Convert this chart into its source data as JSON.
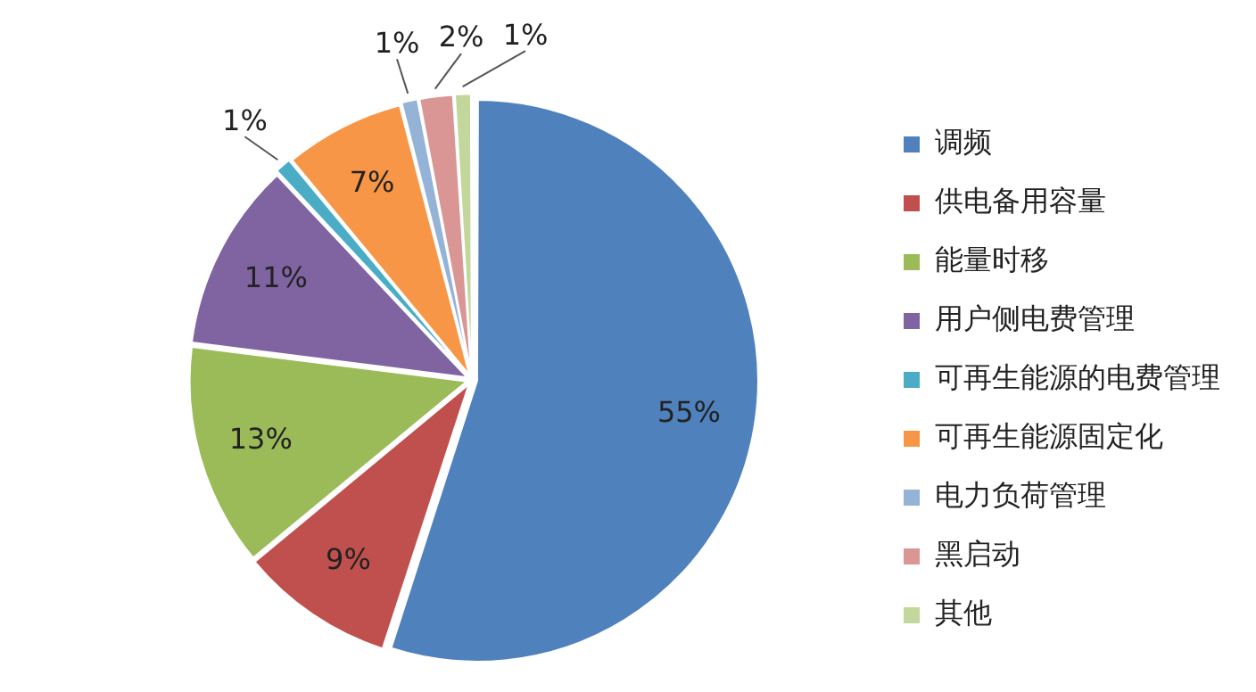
{
  "chart_data": {
    "type": "pie",
    "categories": [
      "调频",
      "供电备用容量",
      "能量时移",
      "用户侧电费管理",
      "可再生能源的电费管理",
      "可再生能源固定化",
      "电力负荷管理",
      "黑启动",
      "其他"
    ],
    "values": [
      55,
      9,
      13,
      11,
      1,
      7,
      1,
      2,
      1
    ],
    "value_labels": [
      "55%",
      "9%",
      "13%",
      "11%",
      "1%",
      "7%",
      "1%",
      "2%",
      "1%"
    ],
    "colors": [
      "#4f81bd",
      "#c0504d",
      "#9bbb59",
      "#8064a2",
      "#4bacc6",
      "#f79646",
      "#95b3d7",
      "#d99694",
      "#c3d69b"
    ],
    "legend": "right"
  }
}
